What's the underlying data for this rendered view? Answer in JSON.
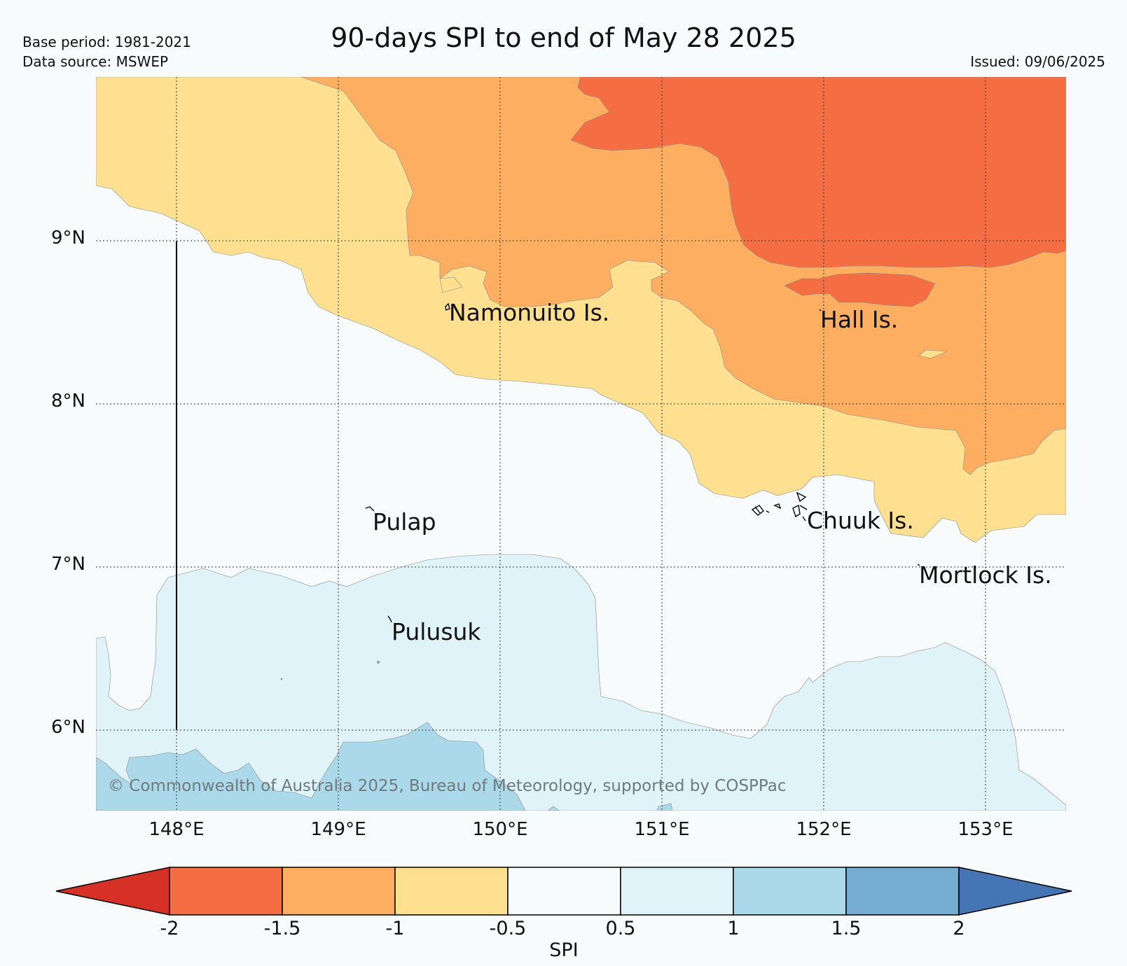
{
  "header": {
    "title": "90-days SPI to end of May 28 2025",
    "base_period": "Base period: 1981-2021",
    "data_source": "Data source: MSWEP",
    "issued": "Issued: 09/06/2025"
  },
  "map": {
    "lat_labels": [
      "9°N",
      "8°N",
      "7°N",
      "6°N"
    ],
    "lon_labels": [
      "148°E",
      "149°E",
      "150°E",
      "151°E",
      "152°E",
      "153°E"
    ],
    "places": [
      "Namonuito Is.",
      "Hall Is.",
      "Pulap",
      "Chuuk Is.",
      "Mortlock Is.",
      "Pulusuk"
    ],
    "copyright": "© Commonwealth of Australia 2025, Bureau of Meteorology, supported by COSPPac"
  },
  "colorbar": {
    "ticks": [
      "-2",
      "-1.5",
      "-1",
      "-0.5",
      "0.5",
      "1",
      "1.5",
      "2"
    ],
    "label": "SPI",
    "colors": [
      "#d73027",
      "#f46d43",
      "#fdae61",
      "#fee090",
      "#f7fbfc",
      "#e0f3f8",
      "#abd9e9",
      "#74add1",
      "#4575b4"
    ]
  }
}
